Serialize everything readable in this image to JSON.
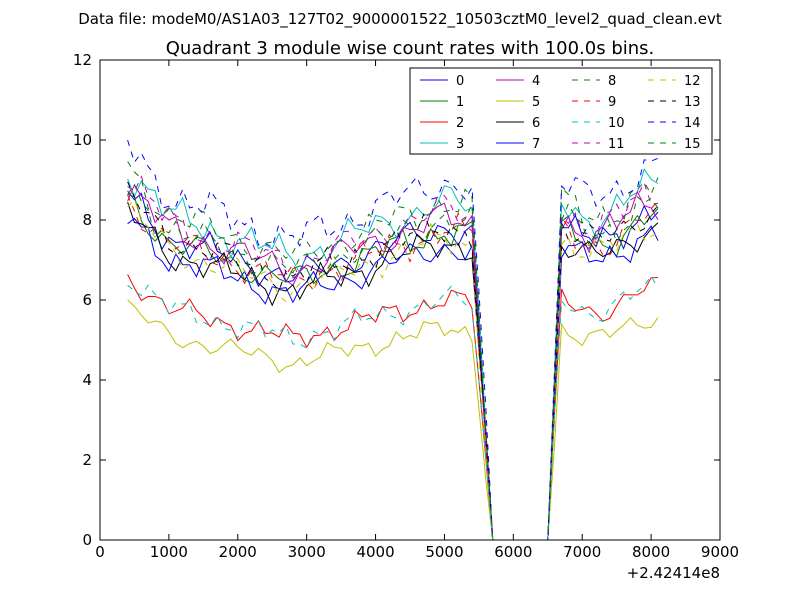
{
  "chart_data": {
    "type": "line",
    "suptitle": "Data file: modeM0/AS1A03_127T02_9000001522_10503cztM0_level2_quad_clean.evt",
    "title": "Quadrant 3 module wise count rates with 100.0s bins.",
    "xlabel": "",
    "ylabel": "",
    "x_offset_label": "+2.42414e8",
    "xlim": [
      0,
      9000
    ],
    "ylim": [
      0,
      12
    ],
    "xticks": [
      0,
      1000,
      2000,
      3000,
      4000,
      5000,
      6000,
      7000,
      8000,
      9000
    ],
    "yticks": [
      0,
      2,
      4,
      6,
      8,
      10,
      12
    ],
    "legend_location": "top-right",
    "series": [
      {
        "name": "0",
        "color": "#0000ff",
        "dash": "solid",
        "level": 7.7
      },
      {
        "name": "1",
        "color": "#008000",
        "dash": "solid",
        "level": 7.6
      },
      {
        "name": "2",
        "color": "#ff0000",
        "dash": "solid",
        "level": 5.9
      },
      {
        "name": "3",
        "color": "#00bfbf",
        "dash": "solid",
        "level": 8.3
      },
      {
        "name": "4",
        "color": "#bf00bf",
        "dash": "solid",
        "level": 7.9
      },
      {
        "name": "5",
        "color": "#bfbf00",
        "dash": "solid",
        "level": 5.2
      },
      {
        "name": "6",
        "color": "#000000",
        "dash": "solid",
        "level": 7.3
      },
      {
        "name": "7",
        "color": "#0000ff",
        "dash": "solid",
        "level": 7.2
      },
      {
        "name": "8",
        "color": "#008000",
        "dash": "dashed",
        "level": 8.3
      },
      {
        "name": "9",
        "color": "#ff0000",
        "dash": "dashed",
        "level": 7.6
      },
      {
        "name": "10",
        "color": "#00bfbf",
        "dash": "dashed",
        "level": 5.9
      },
      {
        "name": "11",
        "color": "#bf00bf",
        "dash": "dashed",
        "level": 8.1
      },
      {
        "name": "12",
        "color": "#bfbf00",
        "dash": "dashed",
        "level": 7.4
      },
      {
        "name": "13",
        "color": "#000000",
        "dash": "dashed",
        "level": 7.7
      },
      {
        "name": "14",
        "color": "#0000ff",
        "dash": "dashed",
        "level": 8.8
      },
      {
        "name": "15",
        "color": "#008000",
        "dash": "dashed",
        "level": 7.9
      }
    ],
    "x_start": 400,
    "x_step": 100,
    "x_end": 8100,
    "gap_start": 5700,
    "gap_end": 6500
  }
}
